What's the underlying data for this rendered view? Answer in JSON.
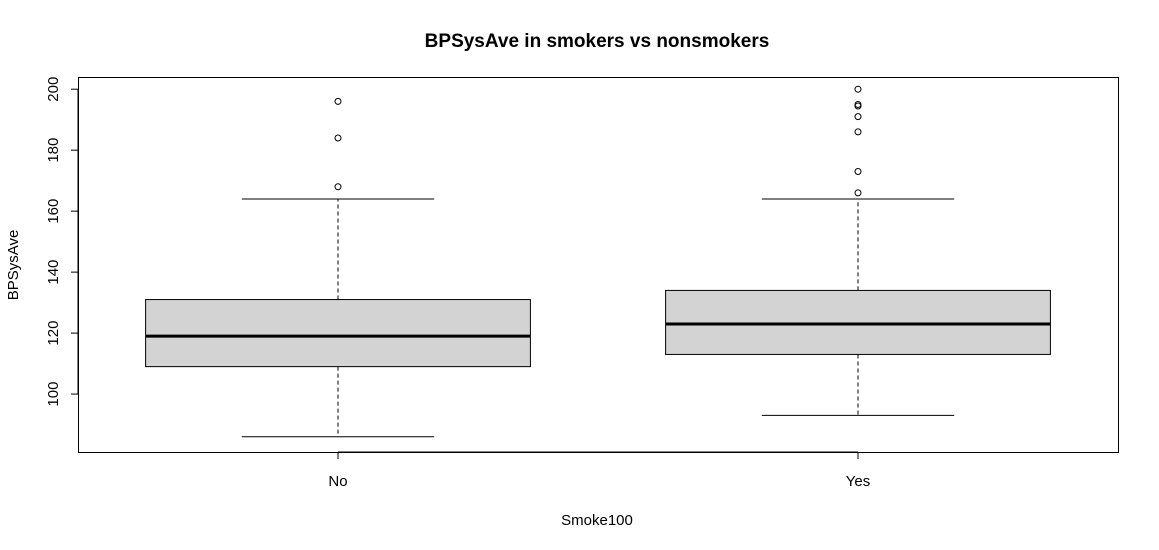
{
  "chart_data": {
    "type": "boxplot",
    "title": "BPSysAve in smokers vs nonsmokers",
    "xlabel": "Smoke100",
    "ylabel": "BPSysAve",
    "ylim": [
      81,
      204
    ],
    "yticks": [
      "100",
      "120",
      "140",
      "160",
      "180",
      "200"
    ],
    "categories": [
      "No",
      "Yes"
    ],
    "series": [
      {
        "category": "No",
        "whisker_low": 86,
        "q1": 109,
        "median": 119,
        "q3": 131,
        "whisker_high": 164,
        "outliers": [
          168,
          184,
          196
        ]
      },
      {
        "category": "Yes",
        "whisker_low": 93,
        "q1": 113,
        "median": 123,
        "q3": 134,
        "whisker_high": 164,
        "outliers": [
          166,
          173,
          186,
          191,
          194.5,
          195,
          200
        ]
      }
    ],
    "box_fill": "#d3d3d3",
    "line_color": "#000000",
    "grid": false
  }
}
